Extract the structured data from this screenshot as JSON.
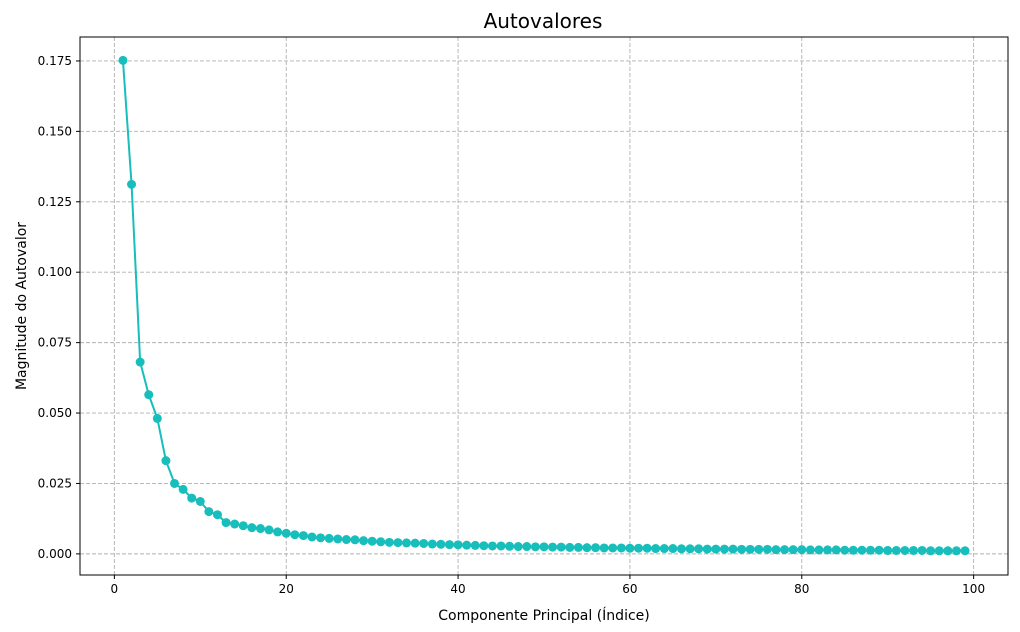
{
  "chart_data": {
    "type": "line",
    "title": "Autovalores",
    "xlabel": "Componente Principal (Índice)",
    "ylabel": "Magnitude do Autovalor",
    "xlim": [
      -4,
      104
    ],
    "ylim": [
      -0.0075,
      0.1835
    ],
    "xticks": [
      0,
      20,
      40,
      60,
      80,
      100
    ],
    "xtick_labels": [
      "0",
      "20",
      "40",
      "60",
      "80",
      "100"
    ],
    "yticks": [
      0,
      0.025,
      0.05,
      0.075,
      0.1,
      0.125,
      0.15,
      0.175
    ],
    "ytick_labels": [
      "0.000",
      "0.025",
      "0.050",
      "0.075",
      "0.100",
      "0.125",
      "0.150",
      "0.175"
    ],
    "grid": true,
    "grid_style": "dashed",
    "legend": "none",
    "series": [
      {
        "color": "#17BEBB",
        "marker": "circle",
        "x": [
          1,
          2,
          3,
          4,
          5,
          6,
          7,
          8,
          9,
          10,
          11,
          12,
          13,
          14,
          15,
          16,
          17,
          18,
          19,
          20,
          21,
          22,
          23,
          24,
          25,
          26,
          27,
          28,
          29,
          30,
          31,
          32,
          33,
          34,
          35,
          36,
          37,
          38,
          39,
          40,
          41,
          42,
          43,
          44,
          45,
          46,
          47,
          48,
          49,
          50,
          51,
          52,
          53,
          54,
          55,
          56,
          57,
          58,
          59,
          60,
          61,
          62,
          63,
          64,
          65,
          66,
          67,
          68,
          69,
          70,
          71,
          72,
          73,
          74,
          75,
          76,
          77,
          78,
          79,
          80,
          81,
          82,
          83,
          84,
          85,
          86,
          87,
          88,
          89,
          90,
          91,
          92,
          93,
          94,
          95,
          96,
          97,
          98,
          99
        ],
        "values": [
          0.1752,
          0.1312,
          0.0681,
          0.0565,
          0.0481,
          0.0331,
          0.025,
          0.0229,
          0.0198,
          0.0186,
          0.015,
          0.0139,
          0.0111,
          0.0106,
          0.01,
          0.0093,
          0.009,
          0.0085,
          0.0078,
          0.0073,
          0.0068,
          0.0065,
          0.006,
          0.0057,
          0.0055,
          0.0053,
          0.0051,
          0.005,
          0.0047,
          0.0045,
          0.0043,
          0.0041,
          0.004,
          0.0039,
          0.0038,
          0.0037,
          0.0035,
          0.0034,
          0.0033,
          0.0032,
          0.0031,
          0.003,
          0.0029,
          0.0028,
          0.0028,
          0.0027,
          0.0026,
          0.0026,
          0.0025,
          0.0025,
          0.0024,
          0.0024,
          0.0023,
          0.0023,
          0.0022,
          0.0022,
          0.0021,
          0.0021,
          0.0021,
          0.002,
          0.002,
          0.002,
          0.0019,
          0.0019,
          0.0019,
          0.0018,
          0.0018,
          0.0018,
          0.0017,
          0.0017,
          0.0017,
          0.0017,
          0.0016,
          0.0016,
          0.0016,
          0.0016,
          0.0015,
          0.0015,
          0.0015,
          0.0015,
          0.0014,
          0.0014,
          0.0014,
          0.0014,
          0.0013,
          0.0013,
          0.0013,
          0.0013,
          0.0013,
          0.0012,
          0.0012,
          0.0012,
          0.0012,
          0.0012,
          0.0011,
          0.0011,
          0.0011,
          0.0011,
          0.0011
        ]
      }
    ]
  }
}
